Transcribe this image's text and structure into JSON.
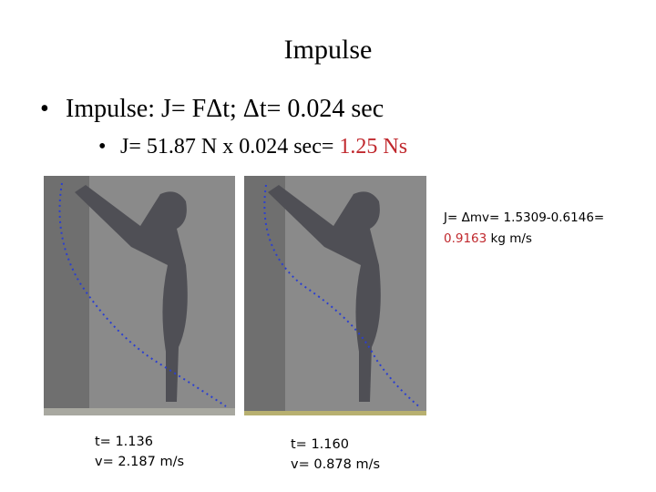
{
  "title": "Impulse",
  "bullets": [
    {
      "text": "Impulse: J= FΔt; Δt= 0.024 sec"
    },
    {
      "text": "J= 51.87 N x 0.024 sec= ",
      "highlight": "1.25 Ns"
    }
  ],
  "annotation": {
    "text": "J= Δmv= 1.5309-0.6146= ",
    "highlight": "0.9163",
    "unit": " kg m/s"
  },
  "captions": [
    [
      "t= 1.136",
      "v= 2.187 m/s"
    ],
    [
      "t= 1.160",
      "v= 0.878 m/s"
    ]
  ]
}
